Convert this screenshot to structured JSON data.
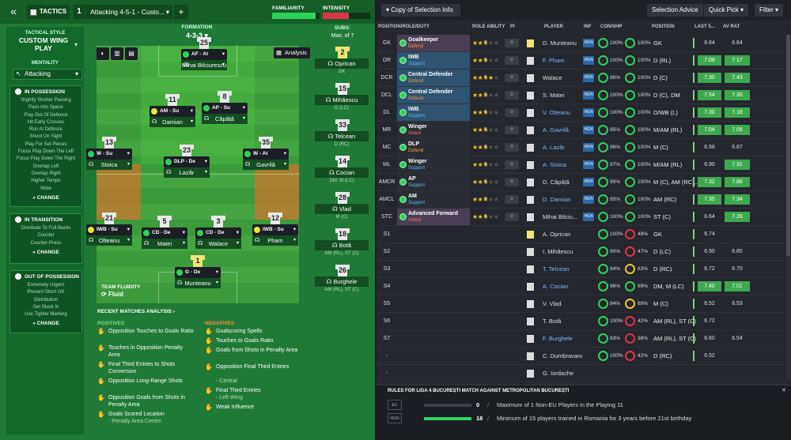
{
  "topbar": {
    "tab_label": "TACTICS",
    "tactic_slot": "1",
    "tactic_name": "Attacking 4-5-1 - Custo...",
    "familiarity_label": "FAMILIARITY",
    "intensity_label": "INTENSITY",
    "familiarity_level": 0.92,
    "intensity_level": 0.55
  },
  "tactical_style": {
    "label": "TACTICAL STYLE",
    "value": "CUSTOM WING PLAY",
    "mentality_label": "MENTALITY",
    "mentality_value": "Attacking",
    "in_possession": {
      "title": "IN POSSESSION",
      "items": [
        "Slightly Shorter Passing",
        "Pass Into Space",
        "Play Out Of Defence",
        "Hit Early Crosses",
        "Run At Defence",
        "Shoot On Sight",
        "Play For Set Pieces",
        "Focus Play Down The Left",
        "Focus Play Down The Right",
        "Overlap Left",
        "Overlap Right",
        "Higher Tempo",
        "Wide"
      ],
      "change": "CHANGE"
    },
    "in_transition": {
      "title": "IN TRANSITION",
      "items": [
        "Distribute To Full-Backs",
        "Counter",
        "Counter-Press"
      ],
      "change": "CHANGE"
    },
    "out_of_possession": {
      "title": "OUT OF POSSESSION",
      "items": [
        "Extremely Urgent",
        "Prevent Short GK",
        "Distribution",
        "Get Stuck In",
        "Use Tighter Marking"
      ],
      "change": "CHANGE"
    }
  },
  "formation": {
    "label": "FORMATION",
    "value": "4-3-3",
    "analysis_button": "Analysis",
    "team_fluidity_label": "TEAM FLUIDITY",
    "team_fluidity_value": "Fluid"
  },
  "pitch_players": [
    {
      "num": "25",
      "role": "AF - At",
      "name": "Mihai Bilciurescu",
      "role_color": "#2fd25c"
    },
    {
      "num": "11",
      "role": "AM - Su",
      "name": "Damian",
      "role_color": "#e8e43a"
    },
    {
      "num": "8",
      "role": "AP - Su",
      "name": "Căpăță",
      "role_color": "#2fd25c"
    },
    {
      "num": "13",
      "role": "W - Su",
      "name": "Stoica",
      "role_color": "#2fd25c"
    },
    {
      "num": "23",
      "role": "DLP - De",
      "name": "Lazăr",
      "role_color": "#2fd25c"
    },
    {
      "num": "35",
      "role": "W - At",
      "name": "Gavrilă",
      "role_color": "#2fd25c"
    },
    {
      "num": "21",
      "role": "IWB - Su",
      "name": "Olteanu",
      "role_color": "#e8e43a"
    },
    {
      "num": "5",
      "role": "CD - De",
      "name": "Matei",
      "role_color": "#2fd25c"
    },
    {
      "num": "3",
      "role": "CD - De",
      "name": "Walace",
      "role_color": "#2fd25c"
    },
    {
      "num": "12",
      "role": "IWB - Su",
      "name": "Pham",
      "role_color": "#e8e43a"
    },
    {
      "num": "1",
      "role": "G - De",
      "name": "Munteanu",
      "role_color": "#2fd25c"
    }
  ],
  "subs": {
    "label": "SUBS:",
    "max": "Max. of 7",
    "players": [
      {
        "num": "2",
        "name": "Oprican",
        "pos": "GK"
      },
      {
        "num": "15",
        "name": "Mihăescu",
        "pos": "D (LC)"
      },
      {
        "num": "33",
        "name": "Telcean",
        "pos": "D (RC)"
      },
      {
        "num": "14",
        "name": "Cocian",
        "pos": "DM, M (LC)"
      },
      {
        "num": "28",
        "name": "Vlad",
        "pos": "M (C)"
      },
      {
        "num": "18",
        "name": "Botă",
        "pos": "AM (RL), ST (C)"
      },
      {
        "num": "26",
        "name": "Burghele",
        "pos": "AM (RL), ST (C)"
      }
    ]
  },
  "recent_analysis": {
    "title": "RECENT MATCHES ANALYSIS",
    "positives_label": "POSITIVES",
    "negatives_label": "NEGATIVES",
    "positives": [
      {
        "text": "Opposition Touches to Goals Ratio",
        "sub": ""
      },
      {
        "text": "Touches in Opposition Penalty Area",
        "sub": ""
      },
      {
        "text": "Final Third Entries to Shots Conversion",
        "sub": ""
      },
      {
        "text": "Opposition Long-Range Shots",
        "sub": ""
      },
      {
        "text": "Opposition Goals from Shots in Penalty Area",
        "sub": ""
      },
      {
        "text": "Goals Scored Location",
        "sub": "- Penalty Area Centre"
      }
    ],
    "negatives": [
      {
        "text": "Goalscoring Spells",
        "sub": ""
      },
      {
        "text": "Touches to Goals Ratio",
        "sub": ""
      },
      {
        "text": "Goals from Shots in Penalty Area",
        "sub": ""
      },
      {
        "text": "Opposition Final Third Entries",
        "sub": "- Central"
      },
      {
        "text": "Final Third Entries",
        "sub": "- Left Wing"
      },
      {
        "text": "Weak Influence",
        "sub": ""
      }
    ]
  },
  "right_toolbar": {
    "copy_btn": "Copy of Selection Info",
    "selection_advice": "Selection Advice",
    "quick_pick": "Quick Pick",
    "filter": "Filter"
  },
  "columns": {
    "position": "POSITION/ROLE/DUTY",
    "role_ability": "ROLE ABILITY",
    "pi": "PI",
    "player": "PLAYER",
    "inf": "INF",
    "con_shp": "CON/SHP",
    "pos": "POSITION",
    "last5": "LAST 5...",
    "avrat": "AV RAT"
  },
  "starters": [
    {
      "pos": "GK",
      "role": "Goalkeeper",
      "duty": "Defend",
      "stars": 3,
      "name": "D. Munteanu",
      "con": "100%",
      "shp": "100%",
      "ppos": "GK",
      "last5": "6.64",
      "avrat": "6.64",
      "blue": false,
      "band": "#4a3e55"
    },
    {
      "pos": "DR",
      "role": "IWB",
      "duty": "Support",
      "stars": 3,
      "name": "F. Pham",
      "con": "100%",
      "shp": "100%",
      "ppos": "D (RL)",
      "last5": "7.08",
      "avrat": "7.17",
      "blue": true,
      "band": "#2e5470"
    },
    {
      "pos": "DCR",
      "role": "Central Defender",
      "duty": "Defend",
      "stars": 4,
      "name": "Walace",
      "con": "96%",
      "shp": "100%",
      "ppos": "D (C)",
      "last5": "7.30",
      "avrat": "7.43",
      "blue": false,
      "band": "#2e5470"
    },
    {
      "pos": "DCL",
      "role": "Central Defender",
      "duty": "Defend",
      "stars": 3,
      "name": "S. Matei",
      "con": "100%",
      "shp": "100%",
      "ppos": "D (C), DM",
      "last5": "7.54",
      "avrat": "7.35",
      "blue": false,
      "band": "#2e5470"
    },
    {
      "pos": "DL",
      "role": "IWB",
      "duty": "Support",
      "stars": 3,
      "name": "V. Olteanu",
      "con": "100%",
      "shp": "100%",
      "ppos": "D/WB (L)",
      "last5": "7.30",
      "avrat": "7.18",
      "blue": true,
      "band": "#2e5470"
    },
    {
      "pos": "MR",
      "role": "Winger",
      "duty": "Attack",
      "stars": 3,
      "name": "A. Gavrilă",
      "con": "95%",
      "shp": "100%",
      "ppos": "M/AM (RL)",
      "last5": "7.04",
      "avrat": "7.06",
      "blue": true,
      "band": "#2a2d33"
    },
    {
      "pos": "MC",
      "role": "DLP",
      "duty": "Defend",
      "stars": 3,
      "name": "A. Lazăr",
      "con": "96%",
      "shp": "100%",
      "ppos": "M (C)",
      "last5": "6.58",
      "avrat": "6.67",
      "blue": true,
      "band": "#2a2d33"
    },
    {
      "pos": "ML",
      "role": "Winger",
      "duty": "Support",
      "stars": 3,
      "name": "A. Stoica",
      "con": "97%",
      "shp": "100%",
      "ppos": "M/AM (RL)",
      "last5": "6.90",
      "avrat": "7.31",
      "blue": true,
      "band": "#2a2d33"
    },
    {
      "pos": "AMCR",
      "role": "AP",
      "duty": "Support",
      "stars": 3,
      "name": "D. Căpăță",
      "con": "95%",
      "shp": "100%",
      "ppos": "M (C), AM (RC),...",
      "last5": "7.32",
      "avrat": "7.88",
      "blue": false,
      "band": "#2a2d33"
    },
    {
      "pos": "AMCL",
      "role": "AM",
      "duty": "Support",
      "stars": 3,
      "name": "D. Damian",
      "con": "95%",
      "shp": "100%",
      "ppos": "AM (RC)",
      "last5": "7.35",
      "avrat": "7.34",
      "blue": true,
      "band": "#2a2d33"
    },
    {
      "pos": "STC",
      "role": "Advanced Forward",
      "duty": "Attack",
      "stars": 3,
      "name": "Mihai Bilciu...",
      "con": "100%",
      "shp": "100%",
      "ppos": "ST (C)",
      "last5": "6.64",
      "avrat": "7.28",
      "blue": false,
      "band": "#4a3e55"
    }
  ],
  "subs_table": [
    {
      "pos": "S1",
      "name": "A. Oprican",
      "con": "100%",
      "shp": "49%",
      "ppos": "GK",
      "last5": "6.74",
      "avrat": "",
      "blue": false
    },
    {
      "pos": "S2",
      "name": "I. Mihăescu",
      "con": "90%",
      "shp": "47%",
      "ppos": "D (LC)",
      "last5": "6.90",
      "avrat": "6.85",
      "blue": false
    },
    {
      "pos": "S3",
      "name": "T. Telcean",
      "con": "94%",
      "shp": "63%",
      "ppos": "D (RC)",
      "last5": "6.72",
      "avrat": "6.70",
      "blue": true
    },
    {
      "pos": "S4",
      "name": "A. Cocian",
      "con": "96%",
      "shp": "99%",
      "ppos": "DM, M (LC)",
      "last5": "7.40",
      "avrat": "7.01",
      "blue": true
    },
    {
      "pos": "S5",
      "name": "V. Vlad",
      "con": "94%",
      "shp": "69%",
      "ppos": "M (C)",
      "last5": "6.52",
      "avrat": "6.53",
      "blue": false
    },
    {
      "pos": "S6",
      "name": "T. Botă",
      "con": "100%",
      "shp": "42%",
      "ppos": "AM (RL), ST (C)",
      "last5": "6.72",
      "avrat": "",
      "blue": false
    },
    {
      "pos": "S7",
      "name": "F. Burghele",
      "con": "93%",
      "shp": "38%",
      "ppos": "AM (RL), ST (C)",
      "last5": "6.60",
      "avrat": "6.54",
      "blue": true
    },
    {
      "pos": "-",
      "name": "C. Dumbravanu",
      "con": "100%",
      "shp": "42%",
      "ppos": "D (RC)",
      "last5": "6.52",
      "avrat": "",
      "blue": false
    },
    {
      "pos": "-",
      "name": "G. Iordache",
      "con": "",
      "shp": "",
      "ppos": "",
      "last5": "",
      "avrat": "",
      "blue": false
    }
  ],
  "rules": {
    "title": "RULES FOR LIGA 4 BUCUREȘTI MATCH AGAINST METROPOLITAN BUCUREȘTI",
    "items": [
      {
        "chip": "EU",
        "value": "0",
        "sep": "/",
        "text": "Maximum of 1 Non-EU Players in the Playing 11",
        "fill": 0
      },
      {
        "chip": "HGN",
        "value": "18",
        "sep": "/",
        "text": "Minimum of 15 players trained in Romania for 3 years before 21st birthday",
        "fill": 1
      }
    ]
  }
}
